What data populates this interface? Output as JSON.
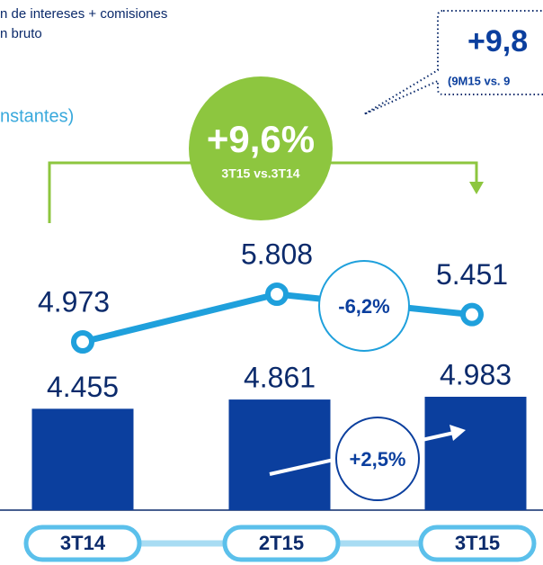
{
  "chart_data": {
    "type": "bar",
    "header_lines": [
      "n de intereses + comisiones",
      "n bruto"
    ],
    "subtitle": "nstantes)",
    "categories": [
      "3T14",
      "2T15",
      "3T15"
    ],
    "series": [
      {
        "type": "bar",
        "color": "#0b3f9e",
        "values": [
          4455,
          4861,
          4983
        ],
        "value_labels": [
          "4.455",
          "4.861",
          "4.983"
        ]
      },
      {
        "type": "line",
        "color": "#1fa0dc",
        "values": [
          4973,
          5808,
          5451
        ],
        "value_labels": [
          "4.973",
          "5.808",
          "5.451"
        ]
      }
    ],
    "annotations": {
      "growth_yoy": "+9,6%",
      "growth_yoy_note": "3T15 vs.3T14",
      "growth_9m": "+9,8",
      "growth_9m_note": "(9M15 vs. 9",
      "line_change": "-6,2%",
      "bar_change": "+2,5%"
    },
    "accent_color": "#8dc63f"
  }
}
